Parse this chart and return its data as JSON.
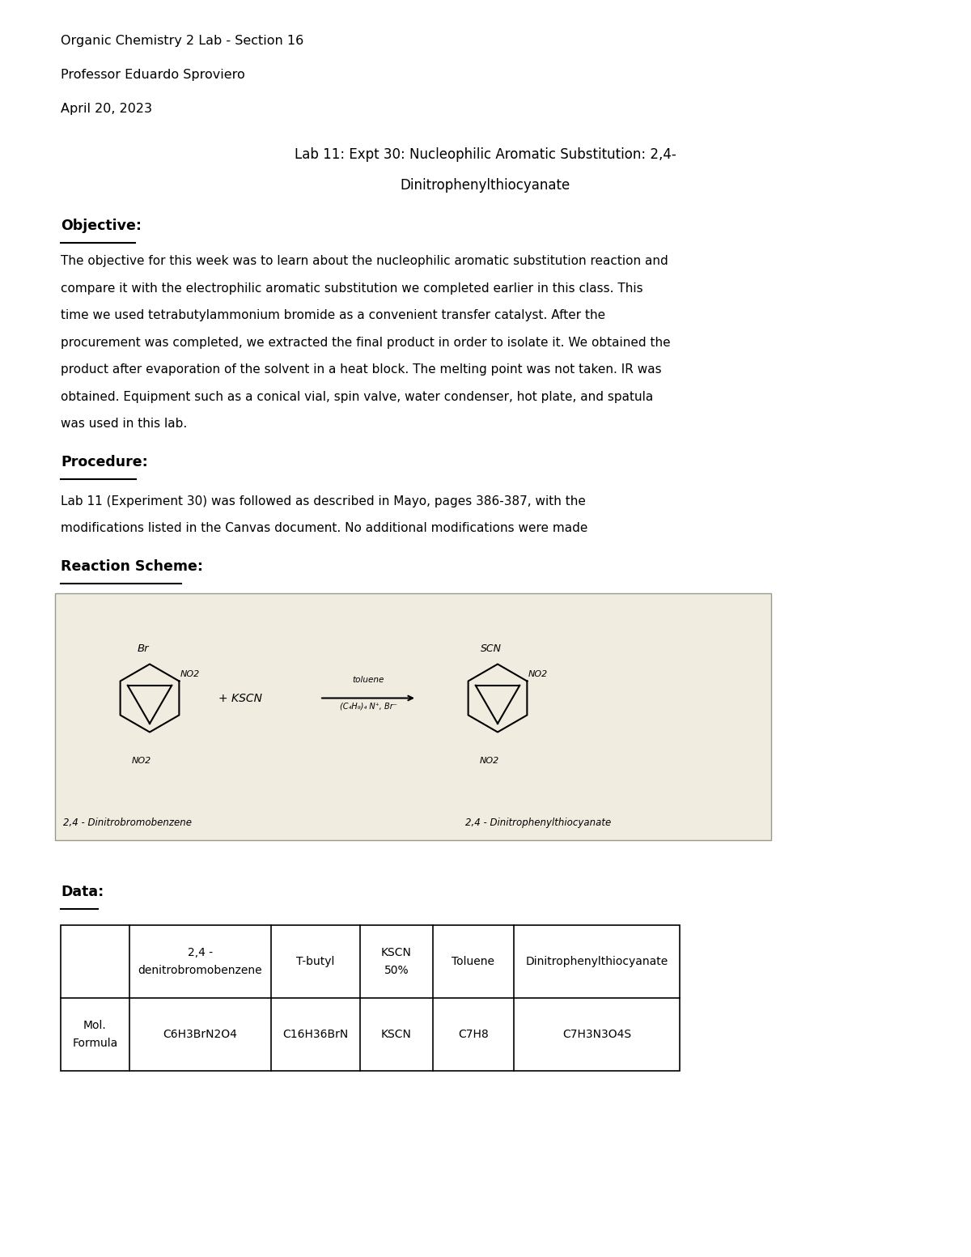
{
  "bg_color": "#ffffff",
  "header_line1": "Organic Chemistry 2 Lab - Section 16",
  "header_line2": "Professor Eduardo Sproviero",
  "header_line3": "April 20, 2023",
  "title_line1": "Lab 11: Expt 30: Nucleophilic Aromatic Substitution: 2,4-",
  "title_line2": "Dinitrophenylthiocyanate",
  "section1_heading": "Objective:",
  "section1_body": "The objective for this week was to learn about the nucleophilic aromatic substitution reaction and\ncompare it with the electrophilic aromatic substitution we completed earlier in this class. This\ntime we used tetrabutylammonium bromide as a convenient transfer catalyst. After the\nprocurement was completed, we extracted the final product in order to isolate it. We obtained the\nproduct after evaporation of the solvent in a heat block. The melting point was not taken. IR was\nobtained. Equipment such as a conical vial, spin valve, water condenser, hot plate, and spatula\nwas used in this lab.",
  "section2_heading": "Procedure:",
  "section2_body": "Lab 11 (Experiment 30) was followed as described in Mayo, pages 386-387, with the\nmodifications listed in the Canvas document. No additional modifications were made",
  "section3_heading": "Reaction Scheme:",
  "reaction_box_color": "#f0ede0",
  "section4_heading": "Data:",
  "table_col_headers": [
    "",
    "2,4 -\ndenitrobromobenzene",
    "T-butyl",
    "KSCN\n50%",
    "Toluene",
    "Dinitrophenylthiocyanate"
  ],
  "table_row1": [
    "Mol.\nFormula",
    "C6H3BrN2O4",
    "C16H36BrN",
    "KSCN",
    "C7H8",
    "C7H3N3O4S"
  ]
}
